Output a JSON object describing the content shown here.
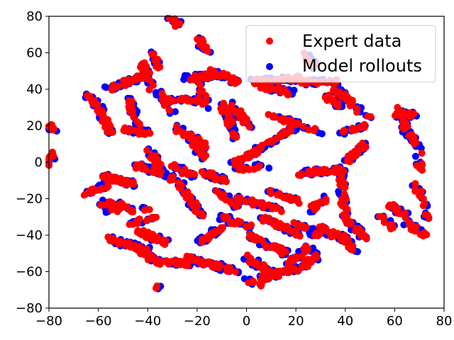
{
  "chart_data": {
    "type": "scatter",
    "title": "",
    "xlabel": "",
    "ylabel": "",
    "xlim": [
      -80,
      80
    ],
    "ylim": [
      -80,
      80
    ],
    "x_ticks": [
      -80,
      -60,
      -40,
      -20,
      0,
      20,
      40,
      60,
      80
    ],
    "y_ticks": [
      -80,
      -60,
      -40,
      -20,
      0,
      20,
      40,
      60,
      80
    ],
    "grid": false,
    "legend_position": "top-right",
    "series": [
      {
        "name": "Model rollouts",
        "color": "#0000ff"
      },
      {
        "name": "Expert data",
        "color": "#ff0000"
      }
    ],
    "clusters": [
      {
        "x0": -31,
        "y0": 79,
        "x1": -27,
        "y1": 75,
        "n": 5
      },
      {
        "x0": -20,
        "y0": 68,
        "x1": -16,
        "y1": 60,
        "n": 4
      },
      {
        "x0": -38,
        "y0": 62,
        "x1": -36,
        "y1": 52,
        "n": 4
      },
      {
        "x0": -56,
        "y0": 40,
        "x1": -40,
        "y1": 48,
        "n": 14
      },
      {
        "x0": -42,
        "y0": 54,
        "x1": -38,
        "y1": 40,
        "n": 8
      },
      {
        "x0": -60,
        "y0": 30,
        "x1": -55,
        "y1": 16,
        "n": 18
      },
      {
        "x0": -66,
        "y0": 37,
        "x1": -60,
        "y1": 32,
        "n": 5
      },
      {
        "x0": -48,
        "y0": 36,
        "x1": -44,
        "y1": 20,
        "n": 8
      },
      {
        "x0": -50,
        "y0": 18,
        "x1": -40,
        "y1": 16,
        "n": 8
      },
      {
        "x0": -36,
        "y0": 38,
        "x1": -30,
        "y1": 28,
        "n": 5
      },
      {
        "x0": -34,
        "y0": 34,
        "x1": -18,
        "y1": 34,
        "n": 10
      },
      {
        "x0": -24,
        "y0": 46,
        "x1": -12,
        "y1": 48,
        "n": 14
      },
      {
        "x0": -14,
        "y0": 50,
        "x1": -4,
        "y1": 44,
        "n": 12
      },
      {
        "x0": -20,
        "y0": 44,
        "x1": -16,
        "y1": 30,
        "n": 5
      },
      {
        "x0": -10,
        "y0": 32,
        "x1": -4,
        "y1": 12,
        "n": 10
      },
      {
        "x0": -6,
        "y0": 32,
        "x1": 2,
        "y1": 18,
        "n": 8
      },
      {
        "x0": -30,
        "y0": 20,
        "x1": -16,
        "y1": 8,
        "n": 12
      },
      {
        "x0": -22,
        "y0": 10,
        "x1": -16,
        "y1": 2,
        "n": 6
      },
      {
        "x0": 2,
        "y0": 44,
        "x1": 22,
        "y1": 46,
        "n": 22
      },
      {
        "x0": 22,
        "y0": 44,
        "x1": 36,
        "y1": 44,
        "n": 12
      },
      {
        "x0": 6,
        "y0": 42,
        "x1": 18,
        "y1": 38,
        "n": 12
      },
      {
        "x0": 24,
        "y0": 60,
        "x1": 28,
        "y1": 52,
        "n": 3
      },
      {
        "x0": 36,
        "y0": 40,
        "x1": 46,
        "y1": 28,
        "n": 14
      },
      {
        "x0": 32,
        "y0": 36,
        "x1": 38,
        "y1": 30,
        "n": 6
      },
      {
        "x0": 10,
        "y0": 26,
        "x1": 30,
        "y1": 16,
        "n": 10
      },
      {
        "x0": 60,
        "y0": 26,
        "x1": 68,
        "y1": 26,
        "n": 8
      },
      {
        "x0": 62,
        "y0": 30,
        "x1": 66,
        "y1": 12,
        "n": 8
      },
      {
        "x0": 66,
        "y0": 16,
        "x1": 72,
        "y1": 4,
        "n": 5
      },
      {
        "x0": -78,
        "y0": 18,
        "x1": -80,
        "y1": 20,
        "n": 3
      },
      {
        "x0": -6,
        "y0": -2,
        "x1": 20,
        "y1": 20,
        "n": 26
      },
      {
        "x0": -6,
        "y0": -4,
        "x1": 8,
        "y1": -2,
        "n": 6
      },
      {
        "x0": 22,
        "y0": -6,
        "x1": 40,
        "y1": -4,
        "n": 18
      },
      {
        "x0": 40,
        "y0": 0,
        "x1": 48,
        "y1": 10,
        "n": 10
      },
      {
        "x0": 38,
        "y0": 16,
        "x1": 48,
        "y1": 20,
        "n": 8
      },
      {
        "x0": 38,
        "y0": -6,
        "x1": 40,
        "y1": -30,
        "n": 10
      },
      {
        "x0": 26,
        "y0": -26,
        "x1": 32,
        "y1": -20,
        "n": 6
      },
      {
        "x0": 40,
        "y0": -30,
        "x1": 48,
        "y1": -42,
        "n": 12
      },
      {
        "x0": 38,
        "y0": -40,
        "x1": 44,
        "y1": -48,
        "n": 8
      },
      {
        "x0": -58,
        "y0": -8,
        "x1": -46,
        "y1": -12,
        "n": 20
      },
      {
        "x0": -66,
        "y0": -18,
        "x1": -56,
        "y1": -12,
        "n": 8
      },
      {
        "x0": -44,
        "y0": -2,
        "x1": -34,
        "y1": -6,
        "n": 10
      },
      {
        "x0": -40,
        "y0": 6,
        "x1": -30,
        "y1": -10,
        "n": 10
      },
      {
        "x0": -30,
        "y0": -2,
        "x1": -20,
        "y1": -8,
        "n": 8
      },
      {
        "x0": -28,
        "y0": -10,
        "x1": -18,
        "y1": -30,
        "n": 14
      },
      {
        "x0": -18,
        "y0": -6,
        "x1": -8,
        "y1": -10,
        "n": 8
      },
      {
        "x0": -12,
        "y0": -16,
        "x1": -4,
        "y1": -24,
        "n": 8
      },
      {
        "x0": -4,
        "y0": -20,
        "x1": 14,
        "y1": -26,
        "n": 12
      },
      {
        "x0": -60,
        "y0": -22,
        "x1": -48,
        "y1": -24,
        "n": 8
      },
      {
        "x0": -56,
        "y0": -26,
        "x1": -40,
        "y1": -26,
        "n": 8
      },
      {
        "x0": -48,
        "y0": -34,
        "x1": -36,
        "y1": -30,
        "n": 6
      },
      {
        "x0": -44,
        "y0": -38,
        "x1": -32,
        "y1": -44,
        "n": 12
      },
      {
        "x0": -56,
        "y0": -42,
        "x1": -40,
        "y1": -48,
        "n": 16
      },
      {
        "x0": -44,
        "y0": -48,
        "x1": -34,
        "y1": -56,
        "n": 10
      },
      {
        "x0": -34,
        "y0": -54,
        "x1": -24,
        "y1": -56,
        "n": 8
      },
      {
        "x0": -24,
        "y0": -52,
        "x1": -10,
        "y1": -58,
        "n": 14
      },
      {
        "x0": -20,
        "y0": -44,
        "x1": -10,
        "y1": -36,
        "n": 10
      },
      {
        "x0": -10,
        "y0": -30,
        "x1": 2,
        "y1": -36,
        "n": 10
      },
      {
        "x0": -14,
        "y0": -56,
        "x1": -4,
        "y1": -60,
        "n": 8
      },
      {
        "x0": 0,
        "y0": -40,
        "x1": 16,
        "y1": -50,
        "n": 16
      },
      {
        "x0": 0,
        "y0": -52,
        "x1": 12,
        "y1": -62,
        "n": 14
      },
      {
        "x0": 6,
        "y0": -64,
        "x1": 20,
        "y1": -58,
        "n": 12
      },
      {
        "x0": 16,
        "y0": -56,
        "x1": 26,
        "y1": -46,
        "n": 10
      },
      {
        "x0": 20,
        "y0": -60,
        "x1": 30,
        "y1": -50,
        "n": 8
      },
      {
        "x0": 6,
        "y0": -30,
        "x1": 22,
        "y1": -40,
        "n": 14
      },
      {
        "x0": 20,
        "y0": -34,
        "x1": 30,
        "y1": -40,
        "n": 8
      },
      {
        "x0": 30,
        "y0": -36,
        "x1": 38,
        "y1": -42,
        "n": 6
      },
      {
        "x0": 10,
        "y0": -16,
        "x1": 22,
        "y1": -22,
        "n": 8
      },
      {
        "x0": 0,
        "y0": -64,
        "x1": 6,
        "y1": -68,
        "n": 4
      },
      {
        "x0": -36,
        "y0": -68,
        "x1": -36,
        "y1": -68,
        "n": 1
      },
      {
        "x0": 54,
        "y0": -30,
        "x1": 60,
        "y1": -36,
        "n": 5
      },
      {
        "x0": 58,
        "y0": -24,
        "x1": 66,
        "y1": -30,
        "n": 6
      },
      {
        "x0": 64,
        "y0": -32,
        "x1": 72,
        "y1": -40,
        "n": 8
      },
      {
        "x0": 68,
        "y0": -10,
        "x1": 72,
        "y1": -24,
        "n": 5
      },
      {
        "x0": 72,
        "y0": -28,
        "x1": 74,
        "y1": -30,
        "n": 2
      },
      {
        "x0": 68,
        "y0": 2,
        "x1": 72,
        "y1": -4,
        "n": 3
      },
      {
        "x0": -80,
        "y0": -2,
        "x1": -78,
        "y1": 6,
        "n": 3
      },
      {
        "x0": 48,
        "y0": 26,
        "x1": 50,
        "y1": 26,
        "n": 1
      }
    ]
  }
}
